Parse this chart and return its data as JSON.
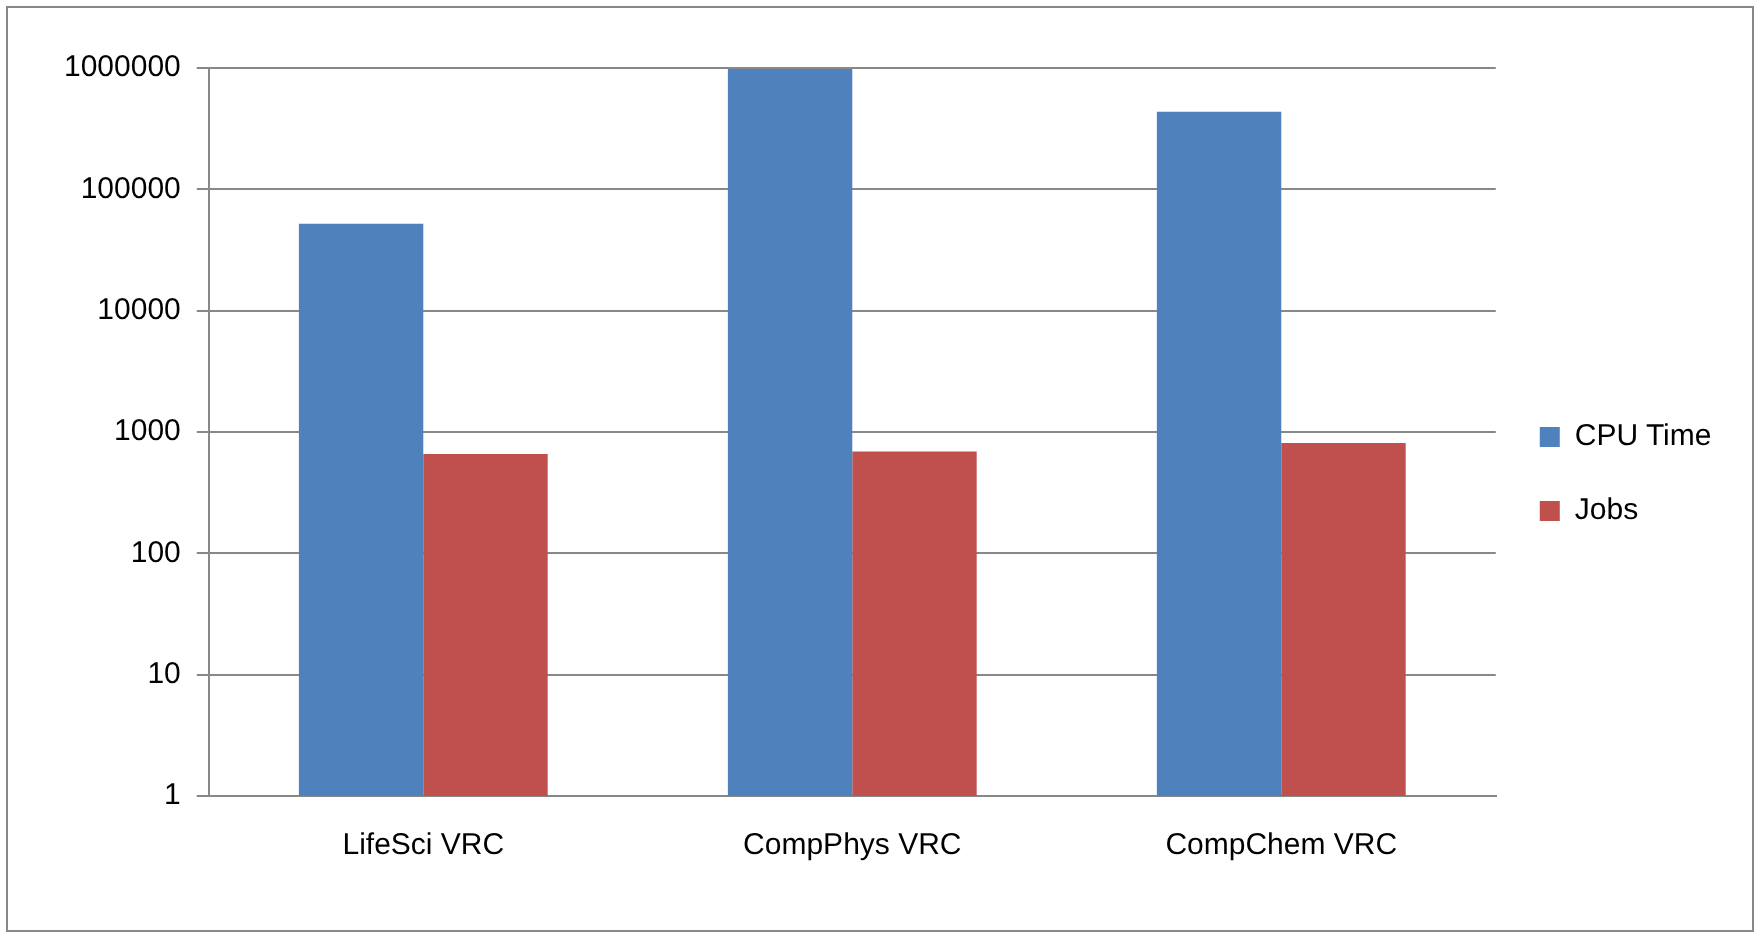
{
  "chart_data": {
    "type": "bar",
    "categories": [
      "LifeSci VRC",
      "CompPhys VRC",
      "CompChem VRC"
    ],
    "series": [
      {
        "name": "CPU Time",
        "color": "#4f81bd",
        "values": [
          52000,
          980000,
          436000
        ]
      },
      {
        "name": "Jobs",
        "color": "#c0504d",
        "values": [
          660,
          690,
          810
        ]
      }
    ],
    "log": "y",
    "ylim": [
      1,
      1000000
    ],
    "yticks": [
      1,
      10,
      100,
      1000,
      10000,
      100000,
      1000000
    ],
    "grid": "y",
    "legend": "right"
  }
}
